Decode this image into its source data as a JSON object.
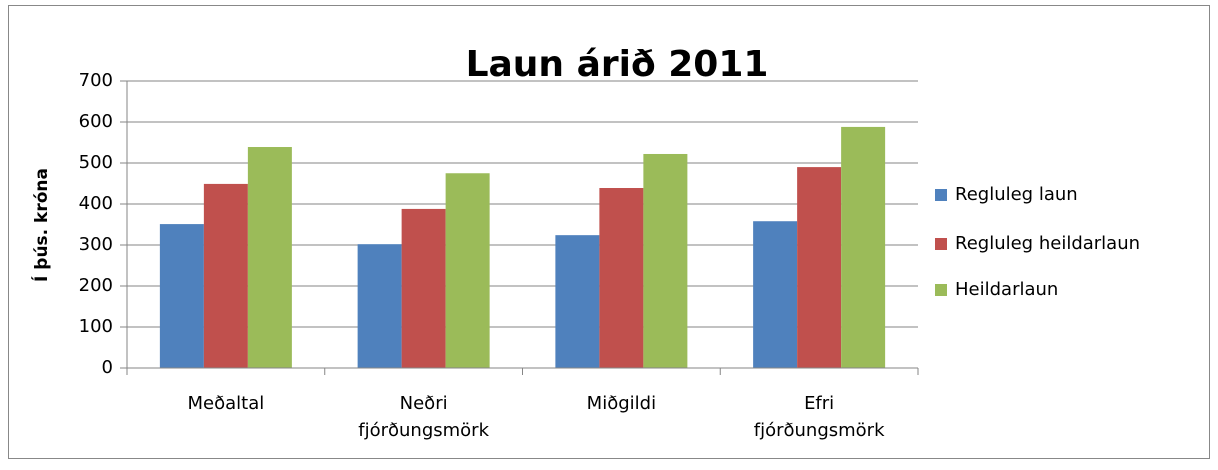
{
  "chart_data": {
    "type": "bar",
    "title": "Laun árið 2011",
    "y_label": "Í þús. króna",
    "categories": [
      "Meðaltal",
      "Neðri fjórðungsmörk",
      "Miðgildi",
      "Efri fjórðungsmörk"
    ],
    "series": [
      {
        "name": "Regluleg laun",
        "color": "#4f81bd",
        "values": [
          351,
          302,
          324,
          358
        ]
      },
      {
        "name": "Regluleg heildarlaun",
        "color": "#c0504d",
        "values": [
          449,
          388,
          439,
          490
        ]
      },
      {
        "name": "Heildarlaun",
        "color": "#9bbb59",
        "values": [
          539,
          475,
          522,
          588
        ]
      }
    ],
    "ylim": [
      0,
      700
    ],
    "yticks": [
      0,
      100,
      200,
      300,
      400,
      500,
      600,
      700
    ],
    "grid": true,
    "legend": "right"
  }
}
